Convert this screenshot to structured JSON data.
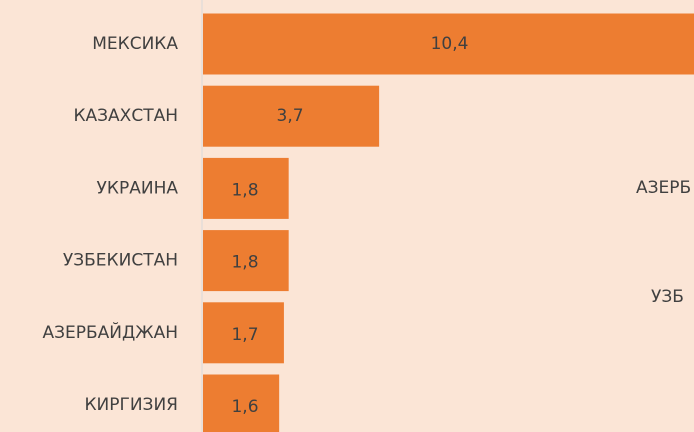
{
  "chart_data": {
    "type": "barh",
    "categories": [
      "МЕКСИКА",
      "КАЗАХСТАН",
      "УКРАИНА",
      "УЗБЕКИСТАН",
      "АЗЕРБАЙДЖАН",
      "КИРГИЗИЯ"
    ],
    "values": [
      10.4,
      3.7,
      1.8,
      1.8,
      1.7,
      1.6
    ],
    "value_labels": [
      "10,4",
      "3,7",
      "1,8",
      "1,8",
      "1,7",
      "1,6"
    ],
    "color": "#ED7D31",
    "annotations": [
      "АЗЕРБ",
      "УЗБ"
    ]
  }
}
